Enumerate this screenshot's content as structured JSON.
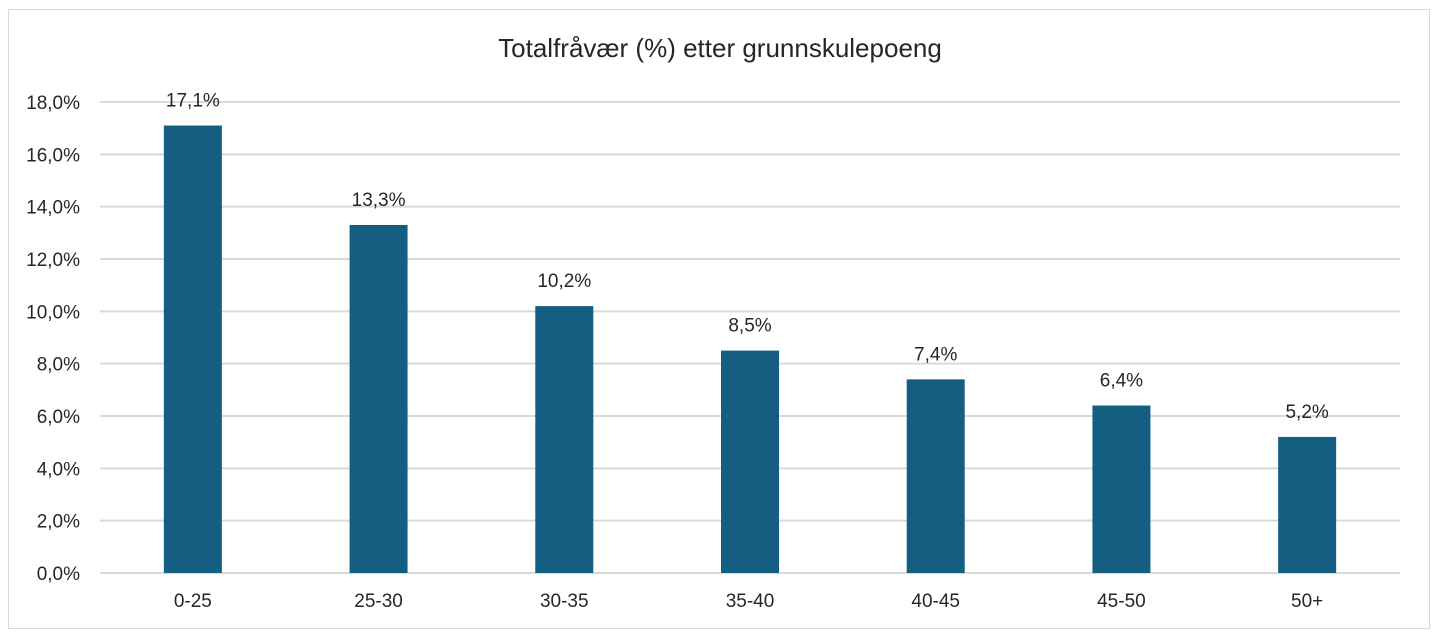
{
  "chart_data": {
    "type": "bar",
    "title": "Totalfråvær (%) etter grunnskulepoeng",
    "categories": [
      "0-25",
      "25-30",
      "30-35",
      "35-40",
      "40-45",
      "45-50",
      "50+"
    ],
    "values": [
      17.1,
      13.3,
      10.2,
      8.5,
      7.4,
      6.4,
      5.2
    ],
    "data_labels": [
      "17,1%",
      "13,3%",
      "10,2%",
      "8,5%",
      "7,4%",
      "6,4%",
      "5,2%"
    ],
    "yticks": [
      0,
      2,
      4,
      6,
      8,
      10,
      12,
      14,
      16,
      18
    ],
    "ytick_labels": [
      "0,0%",
      "2,0%",
      "4,0%",
      "6,0%",
      "8,0%",
      "10,0%",
      "12,0%",
      "14,0%",
      "16,0%",
      "18,0%"
    ],
    "ylim": [
      0,
      18
    ],
    "grid": true,
    "legend": "none",
    "colors": {
      "bar": "#145e82",
      "grid": "#d9d9d9",
      "text": "#262626"
    }
  }
}
